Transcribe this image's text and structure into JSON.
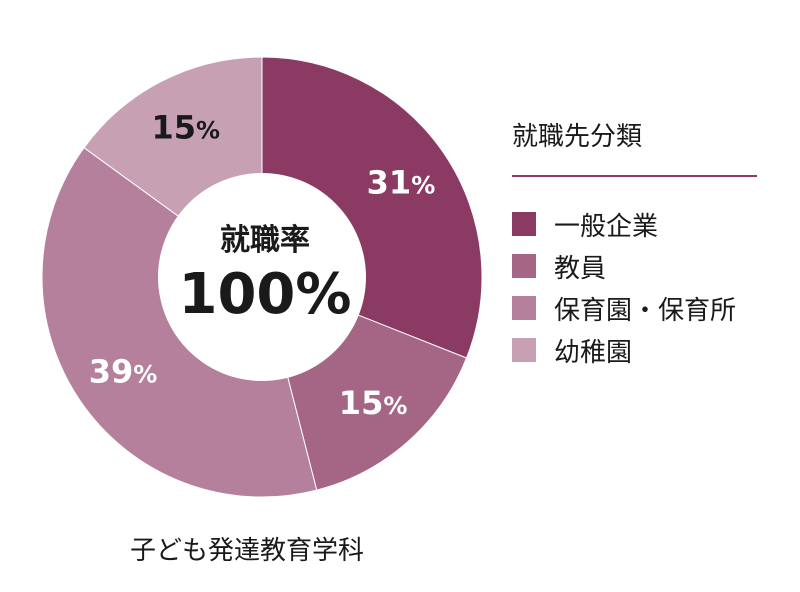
{
  "chart_data": {
    "type": "pie",
    "center_label": "就職率",
    "center_value": "100%",
    "categories": [
      "一般企業",
      "教員",
      "保育園・保育所",
      "幼稚園"
    ],
    "values": [
      31,
      15,
      39,
      15
    ],
    "labels": [
      "31%",
      "15%",
      "39%",
      "15%"
    ],
    "colors": [
      "#8b3b63",
      "#a56686",
      "#b4809b",
      "#c7a1b3"
    ],
    "label_colors": [
      "#ffffff",
      "#ffffff",
      "#ffffff",
      "#1a1a1a"
    ],
    "legend_title": "就職先分類",
    "legend_position": "right"
  },
  "caption": "子ども発達教育学科"
}
